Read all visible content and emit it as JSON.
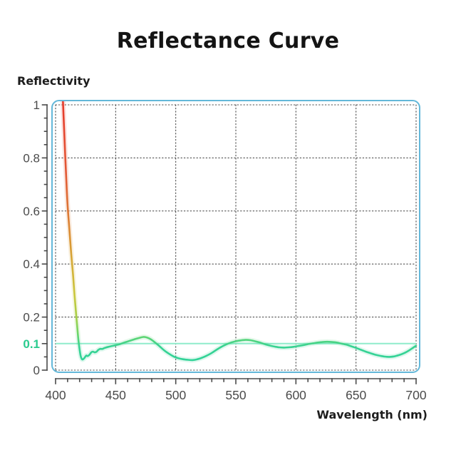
{
  "header": {
    "title": "Reflectance Curve"
  },
  "colors": {
    "background": "#ffffff",
    "title_text": "#141414",
    "plot_border": "#63b8d9",
    "grid": "#3b3b3b",
    "axis": "#4a4a4a",
    "tick_text": "#4a4a4a",
    "curve_green": "#2dd49c",
    "reference_line": "#8feccb",
    "reference_label": "#29cb8e"
  },
  "chart_data": {
    "type": "line",
    "title": "Reflectance Curve",
    "legend": "none",
    "grid": {
      "show": true,
      "style": "dotted"
    },
    "x_axis": {
      "label": "Wavelength (nm)",
      "min": 400,
      "max": 700,
      "major_ticks": [
        400,
        450,
        500,
        550,
        600,
        650,
        700
      ],
      "minor_tick_step": 10
    },
    "y_axis": {
      "label": "Reflectivity",
      "min": 0,
      "max": 1,
      "major_ticks": [
        0,
        0.2,
        0.4,
        0.6,
        0.8,
        1
      ],
      "major_tick_labels": [
        "0",
        "0.2",
        "0.4",
        "0.6",
        "0.8",
        "1"
      ],
      "minor_tick_step": 0.05
    },
    "reference_line": {
      "value": 0.1,
      "label": "0.1"
    },
    "series": [
      {
        "name": "reflectance",
        "gradient_stops": [
          [
            1.0,
            "#e63c2c"
          ],
          [
            0.75,
            "#e25835"
          ],
          [
            0.6,
            "#dd7634"
          ],
          [
            0.48,
            "#d99734"
          ],
          [
            0.38,
            "#d4b138"
          ],
          [
            0.28,
            "#c9c83d"
          ],
          [
            0.2,
            "#a6cf48"
          ],
          [
            0.14,
            "#6fd666"
          ],
          [
            0.09,
            "#38d292"
          ],
          [
            0.0,
            "#2dd49c"
          ]
        ],
        "points": [
          [
            406,
            1.03
          ],
          [
            407,
            0.92
          ],
          [
            408,
            0.81
          ],
          [
            409,
            0.71
          ],
          [
            410,
            0.62
          ],
          [
            411.5,
            0.53
          ],
          [
            413,
            0.44
          ],
          [
            414.5,
            0.36
          ],
          [
            416,
            0.27
          ],
          [
            417.5,
            0.19
          ],
          [
            419,
            0.115
          ],
          [
            420.5,
            0.062
          ],
          [
            421.5,
            0.045
          ],
          [
            422.5,
            0.04
          ],
          [
            424,
            0.046
          ],
          [
            425.5,
            0.055
          ],
          [
            426.5,
            0.053
          ],
          [
            428,
            0.057
          ],
          [
            429.5,
            0.066
          ],
          [
            431,
            0.07
          ],
          [
            432.5,
            0.067
          ],
          [
            434,
            0.069
          ],
          [
            435.5,
            0.076
          ],
          [
            437,
            0.08
          ],
          [
            439,
            0.08
          ],
          [
            441,
            0.084
          ],
          [
            444,
            0.088
          ],
          [
            447,
            0.091
          ],
          [
            450,
            0.094
          ],
          [
            454,
            0.099
          ],
          [
            458,
            0.105
          ],
          [
            462,
            0.111
          ],
          [
            466,
            0.117
          ],
          [
            470,
            0.122
          ],
          [
            473,
            0.125
          ],
          [
            476,
            0.123
          ],
          [
            479,
            0.117
          ],
          [
            482,
            0.107
          ],
          [
            486,
            0.092
          ],
          [
            490,
            0.076
          ],
          [
            494,
            0.063
          ],
          [
            498,
            0.052
          ],
          [
            502,
            0.045
          ],
          [
            506,
            0.041
          ],
          [
            510,
            0.039
          ],
          [
            514,
            0.038
          ],
          [
            518,
            0.041
          ],
          [
            522,
            0.047
          ],
          [
            526,
            0.055
          ],
          [
            530,
            0.065
          ],
          [
            534,
            0.077
          ],
          [
            538,
            0.088
          ],
          [
            542,
            0.097
          ],
          [
            546,
            0.104
          ],
          [
            550,
            0.109
          ],
          [
            554,
            0.112
          ],
          [
            558,
            0.114
          ],
          [
            562,
            0.113
          ],
          [
            566,
            0.109
          ],
          [
            570,
            0.104
          ],
          [
            574,
            0.098
          ],
          [
            578,
            0.093
          ],
          [
            582,
            0.089
          ],
          [
            586,
            0.086
          ],
          [
            590,
            0.085
          ],
          [
            594,
            0.086
          ],
          [
            598,
            0.088
          ],
          [
            602,
            0.091
          ],
          [
            606,
            0.094
          ],
          [
            610,
            0.098
          ],
          [
            614,
            0.101
          ],
          [
            618,
            0.104
          ],
          [
            622,
            0.106
          ],
          [
            626,
            0.107
          ],
          [
            630,
            0.106
          ],
          [
            634,
            0.104
          ],
          [
            638,
            0.1
          ],
          [
            642,
            0.096
          ],
          [
            646,
            0.09
          ],
          [
            650,
            0.084
          ],
          [
            654,
            0.077
          ],
          [
            658,
            0.07
          ],
          [
            662,
            0.064
          ],
          [
            666,
            0.058
          ],
          [
            670,
            0.054
          ],
          [
            674,
            0.051
          ],
          [
            678,
            0.05
          ],
          [
            682,
            0.052
          ],
          [
            686,
            0.057
          ],
          [
            690,
            0.064
          ],
          [
            694,
            0.074
          ],
          [
            698,
            0.086
          ],
          [
            700,
            0.092
          ]
        ]
      }
    ]
  }
}
